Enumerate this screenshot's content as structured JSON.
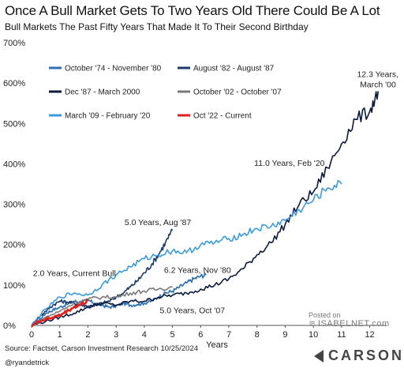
{
  "chart_data": {
    "type": "line",
    "title": "Once A Bull Market Gets To Two Years Old There Could Be A Lot",
    "subtitle": "Bull Markets The Past Fifty Years That Made It To Their Second Birthday",
    "xlabel": "Years",
    "ylabel": "",
    "xlim": [
      0,
      12.6
    ],
    "ylim": [
      0,
      700
    ],
    "x_ticks": [
      0,
      1,
      2,
      3,
      4,
      5,
      6,
      7,
      8,
      9,
      10,
      11,
      12
    ],
    "y_ticks": [
      0,
      100,
      200,
      300,
      400,
      500,
      600,
      700
    ],
    "y_tick_labels": [
      "0%",
      "100%",
      "200%",
      "300%",
      "400%",
      "500%",
      "600%",
      "700%"
    ],
    "grid": false,
    "legend_position": "top-left",
    "series": [
      {
        "name": "October '74 - November '80",
        "color": "#2f6fb3",
        "x": [
          0,
          0.25,
          0.5,
          0.75,
          1.0,
          1.25,
          1.5,
          1.75,
          2.0,
          2.25,
          2.5,
          2.75,
          3.0,
          3.25,
          3.5,
          3.75,
          4.0,
          4.25,
          4.5,
          4.75,
          5.0,
          5.25,
          5.5,
          5.75,
          6.0,
          6.2
        ],
        "y": [
          0,
          12,
          30,
          38,
          45,
          52,
          60,
          58,
          62,
          55,
          50,
          45,
          48,
          55,
          50,
          52,
          55,
          60,
          70,
          80,
          85,
          95,
          105,
          115,
          122,
          125
        ]
      },
      {
        "name": "August '82 - August '87",
        "color": "#1a3a6b",
        "x": [
          0,
          0.25,
          0.5,
          0.75,
          1.0,
          1.25,
          1.5,
          1.75,
          2.0,
          2.25,
          2.5,
          2.75,
          3.0,
          3.25,
          3.5,
          3.75,
          4.0,
          4.25,
          4.5,
          4.75,
          5.0
        ],
        "y": [
          0,
          20,
          35,
          50,
          60,
          58,
          55,
          50,
          48,
          50,
          55,
          60,
          70,
          80,
          95,
          110,
          130,
          150,
          175,
          205,
          235
        ]
      },
      {
        "name": "Dec '87 - March 2000",
        "color": "#0b1a3d",
        "x": [
          0,
          0.5,
          1.0,
          1.5,
          2.0,
          2.5,
          3.0,
          3.5,
          4.0,
          4.5,
          5.0,
          5.5,
          6.0,
          6.5,
          7.0,
          7.5,
          8.0,
          8.5,
          9.0,
          9.5,
          10.0,
          10.5,
          11.0,
          11.5,
          12.0,
          12.3
        ],
        "y": [
          0,
          10,
          20,
          30,
          45,
          55,
          50,
          60,
          60,
          70,
          75,
          80,
          90,
          100,
          115,
          140,
          175,
          205,
          250,
          300,
          330,
          390,
          450,
          510,
          530,
          580
        ]
      },
      {
        "name": "October '02 - October '07",
        "color": "#7a7a7a",
        "x": [
          0,
          0.5,
          1.0,
          1.5,
          2.0,
          2.5,
          3.0,
          3.5,
          4.0,
          4.5,
          5.0
        ],
        "y": [
          0,
          20,
          35,
          55,
          65,
          70,
          70,
          80,
          85,
          90,
          95
        ]
      },
      {
        "name": "March '09 - February '20",
        "color": "#3a9ae0",
        "x": [
          0,
          0.5,
          1.0,
          1.5,
          2.0,
          2.5,
          3.0,
          3.5,
          4.0,
          4.5,
          5.0,
          5.5,
          6.0,
          6.5,
          7.0,
          7.5,
          8.0,
          8.5,
          9.0,
          9.5,
          10.0,
          10.5,
          11.0
        ],
        "y": [
          0,
          40,
          70,
          80,
          75,
          100,
          125,
          145,
          165,
          175,
          185,
          180,
          200,
          205,
          215,
          225,
          240,
          245,
          260,
          285,
          310,
          340,
          350
        ]
      },
      {
        "name": "Oct '22 - Current",
        "color": "#e3211c",
        "x": [
          0,
          0.25,
          0.5,
          0.75,
          1.0,
          1.25,
          1.5,
          1.75,
          2.0
        ],
        "y": [
          0,
          10,
          15,
          20,
          25,
          35,
          45,
          52,
          60
        ]
      }
    ],
    "annotations": [
      {
        "text": "12.3 Years,",
        "x": 11.55,
        "y": 615
      },
      {
        "text": "March '00",
        "x": 11.65,
        "y": 590
      },
      {
        "text": "11.0 Years, Feb '20",
        "x": 7.9,
        "y": 395
      },
      {
        "text": "5.0 Years, Aug '87",
        "x": 3.3,
        "y": 248
      },
      {
        "text": "2.0 Years, Current Bull",
        "x": 0.05,
        "y": 122
      },
      {
        "text": "6.2 Years, Nov '80",
        "x": 4.7,
        "y": 130
      },
      {
        "text": "5.0 Years, Oct '07",
        "x": 4.55,
        "y": 30
      }
    ]
  },
  "footer": {
    "source": "Source: Factset, Carson Investment Research 10/25/2024",
    "handle": "@ryandetrick"
  },
  "watermark": {
    "posted_on": "Posted on",
    "site": "ISABELNET.com"
  },
  "brand": {
    "name": "CARSON"
  }
}
